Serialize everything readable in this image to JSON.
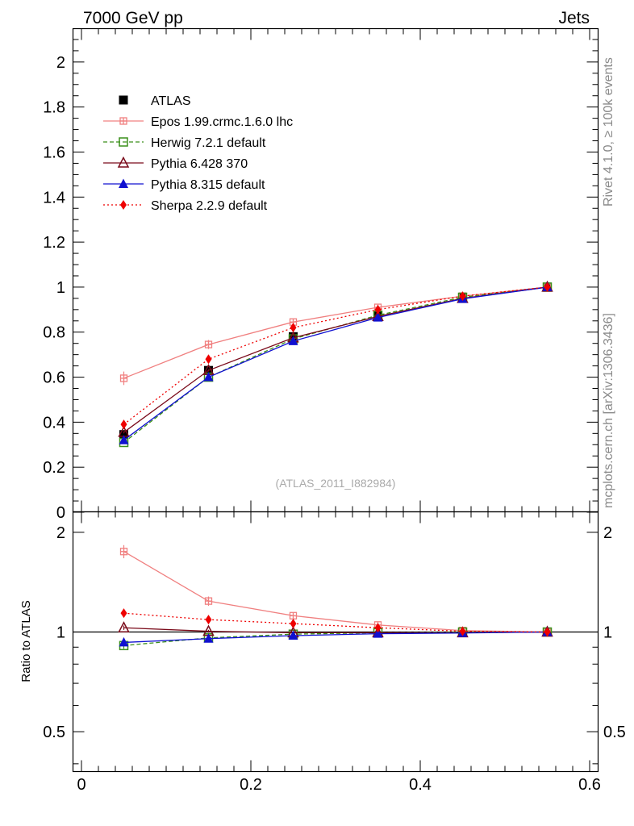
{
  "header": {
    "left_title": "7000 GeV pp",
    "right_title": "Jets"
  },
  "side_labels": {
    "rivet": "Rivet 4.1.0, ≥ 100k events",
    "mcplots": "mcplots.cern.ch [arXiv:1306.3436]"
  },
  "watermark": "(ATLAS_2011_I882984)",
  "colors": {
    "ATLAS": "#000000",
    "Epos": "#f08080",
    "Herwig": "#3a8f1a",
    "Pythia6": "#7a0a1a",
    "Pythia8": "#1010d0",
    "Sherpa": "#ee0000"
  },
  "chart_data": [
    {
      "type": "line",
      "panel": "main",
      "title": "7000 GeV pp Jets",
      "xlabel": "",
      "ylabel": "",
      "xlim": [
        0,
        0.6
      ],
      "ylim": [
        0,
        2.15
      ],
      "yticks": [
        0,
        0.2,
        0.4,
        0.6,
        0.8,
        1,
        1.2,
        1.4,
        1.6,
        1.8,
        2
      ],
      "ytick_labels": [
        "0",
        "0.2",
        "0.4",
        "0.6",
        "0.8",
        "1",
        "1.2",
        "1.4",
        "1.6",
        "1.8",
        "2"
      ],
      "legend_position": "top-left",
      "x": [
        0.05,
        0.15,
        0.25,
        0.35,
        0.45,
        0.55
      ],
      "series": [
        {
          "name": "ATLAS",
          "key": "ATLAS",
          "style": "markers",
          "marker": "square",
          "values": [
            0.345,
            0.63,
            0.78,
            0.875,
            0.955,
            1.0
          ],
          "errors": [
            0.01,
            0.01,
            0.01,
            0.01,
            0.005,
            0.0
          ]
        },
        {
          "name": "Epos 1.99.crmc.1.6.0 lhc",
          "key": "Epos",
          "style": "solid",
          "marker": "open-cross-square",
          "values": [
            0.595,
            0.745,
            0.845,
            0.91,
            0.96,
            1.0
          ],
          "errors": [
            0.03,
            0.02,
            0.015,
            0.012,
            0.008,
            0.0
          ]
        },
        {
          "name": "Herwig 7.2.1 default",
          "key": "Herwig",
          "style": "dashed",
          "marker": "open-square",
          "values": [
            0.31,
            0.6,
            0.77,
            0.875,
            0.955,
            1.0
          ],
          "errors": [
            0.005,
            0.005,
            0.005,
            0.005,
            0.004,
            0.0
          ]
        },
        {
          "name": "Pythia 6.428 370",
          "key": "Pythia6",
          "style": "solid",
          "marker": "open-triangle",
          "values": [
            0.355,
            0.63,
            0.775,
            0.87,
            0.95,
            1.0
          ],
          "errors": [
            0.005,
            0.005,
            0.005,
            0.005,
            0.004,
            0.0
          ]
        },
        {
          "name": "Pythia 8.315 default",
          "key": "Pythia8",
          "style": "solid",
          "marker": "filled-triangle",
          "values": [
            0.32,
            0.6,
            0.76,
            0.865,
            0.948,
            1.0
          ],
          "errors": [
            0.005,
            0.005,
            0.005,
            0.005,
            0.004,
            0.0
          ]
        },
        {
          "name": "Sherpa 2.2.9 default",
          "key": "Sherpa",
          "style": "dotted",
          "marker": "filled-diamond",
          "values": [
            0.39,
            0.68,
            0.82,
            0.9,
            0.96,
            1.0
          ],
          "errors": [
            0.006,
            0.006,
            0.006,
            0.005,
            0.004,
            0.0
          ]
        }
      ]
    },
    {
      "type": "line",
      "panel": "ratio",
      "title": "",
      "xlabel": "",
      "ylabel": "Ratio to ATLAS",
      "xlim": [
        0,
        0.6
      ],
      "ylim": [
        0.38,
        2.3
      ],
      "yscale": "log",
      "xticks": [
        0,
        0.2,
        0.4,
        0.6
      ],
      "xtick_labels": [
        "0",
        "0.2",
        "0.4",
        "0.6"
      ],
      "yticks": [
        0.5,
        1,
        2
      ],
      "ytick_labels": [
        "0.5",
        "1",
        "2"
      ],
      "reference_line": 1,
      "x": [
        0.05,
        0.15,
        0.25,
        0.35,
        0.45,
        0.55
      ],
      "series": [
        {
          "name": "Epos 1.99.crmc.1.6.0 lhc",
          "key": "Epos",
          "style": "solid",
          "marker": "open-cross-square",
          "values": [
            1.75,
            1.24,
            1.12,
            1.05,
            1.01,
            1.0
          ],
          "errors": [
            0.08,
            0.04,
            0.02,
            0.015,
            0.01,
            0.0
          ]
        },
        {
          "name": "Herwig 7.2.1 default",
          "key": "Herwig",
          "style": "dashed",
          "marker": "open-square",
          "values": [
            0.91,
            0.96,
            0.985,
            0.995,
            1.0,
            1.0
          ],
          "errors": [
            0.02,
            0.01,
            0.008,
            0.006,
            0.005,
            0.0
          ]
        },
        {
          "name": "Pythia 6.428 370",
          "key": "Pythia6",
          "style": "solid",
          "marker": "open-triangle",
          "values": [
            1.03,
            1.005,
            0.995,
            0.995,
            0.995,
            1.0
          ],
          "errors": [
            0.015,
            0.01,
            0.008,
            0.006,
            0.005,
            0.0
          ]
        },
        {
          "name": "Pythia 8.315 default",
          "key": "Pythia8",
          "style": "solid",
          "marker": "filled-triangle",
          "values": [
            0.93,
            0.955,
            0.975,
            0.988,
            0.993,
            1.0
          ],
          "errors": [
            0.015,
            0.01,
            0.008,
            0.006,
            0.005,
            0.0
          ]
        },
        {
          "name": "Sherpa 2.2.9 default",
          "key": "Sherpa",
          "style": "dotted",
          "marker": "filled-diamond",
          "values": [
            1.14,
            1.09,
            1.06,
            1.03,
            1.005,
            1.0
          ],
          "errors": [
            0.02,
            0.012,
            0.01,
            0.008,
            0.006,
            0.0
          ]
        }
      ]
    }
  ]
}
